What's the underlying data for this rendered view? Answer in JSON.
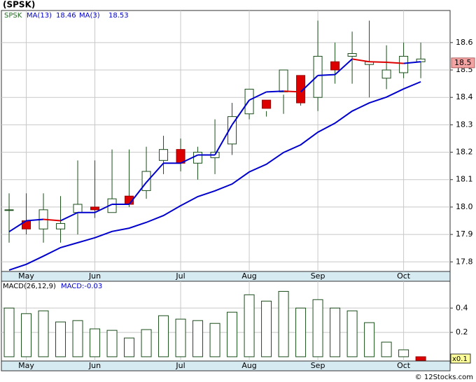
{
  "title": "(SPSK)",
  "footer": "© 12Stocks.com",
  "chart_data": [
    {
      "type": "candlestick",
      "xlim": [
        -0.45,
        25.71
      ],
      "xticks": [
        {
          "value": 1,
          "label": "May"
        },
        {
          "value": 5,
          "label": "Jun"
        },
        {
          "value": 10,
          "label": "Jul"
        },
        {
          "value": 14,
          "label": "Aug"
        },
        {
          "value": 18,
          "label": "Sep"
        },
        {
          "value": 23,
          "label": "Oct"
        }
      ],
      "ylim": [
        17.765,
        18.717
      ],
      "yticks": [
        17.8,
        17.9,
        {
          "value": 18,
          "label": "18.0"
        },
        18.1,
        18.2,
        18.3,
        18.4,
        18.5,
        18.6
      ],
      "grid": true,
      "ohlc": {
        "name": "SPSK",
        "up_color": "#ffffff",
        "down_color": "#dd0000",
        "edge_color": "#1a4d1a",
        "open": [
          17.99,
          17.95,
          17.92,
          17.92,
          17.98,
          18.0,
          17.98,
          18.04,
          18.06,
          18.17,
          18.21,
          18.16,
          18.18,
          18.23,
          18.34,
          18.39,
          18.42,
          18.48,
          18.4,
          18.53,
          18.55,
          18.52,
          18.47,
          18.49,
          18.53
        ],
        "high": [
          18.05,
          18.05,
          18.05,
          18.04,
          18.17,
          18.17,
          18.21,
          18.21,
          18.22,
          18.26,
          18.25,
          18.22,
          18.32,
          18.38,
          18.38,
          18.35,
          18.41,
          18.39,
          18.68,
          18.6,
          18.64,
          18.68,
          18.59,
          18.6,
          18.6
        ],
        "low": [
          17.87,
          17.9,
          17.87,
          17.87,
          17.9,
          17.96,
          17.98,
          18.0,
          18.03,
          18.12,
          18.13,
          18.1,
          18.12,
          18.19,
          18.32,
          18.33,
          18.34,
          18.37,
          18.35,
          18.45,
          18.45,
          18.4,
          18.43,
          18.47,
          18.47
        ],
        "close": [
          17.99,
          17.92,
          17.99,
          17.94,
          18.01,
          17.99,
          18.03,
          18.01,
          18.13,
          18.21,
          18.16,
          18.2,
          18.2,
          18.33,
          18.43,
          18.36,
          18.5,
          18.38,
          18.55,
          18.5,
          18.56,
          18.53,
          18.5,
          18.55,
          18.54
        ]
      },
      "series": [
        {
          "name": "MA(13)",
          "label": "18.46",
          "color": "#0000cc",
          "values": [
            17.77,
            17.791,
            17.821,
            17.852,
            17.87,
            17.888,
            17.911,
            17.923,
            17.944,
            17.969,
            18.005,
            18.038,
            18.059,
            18.084,
            18.128,
            18.156,
            18.199,
            18.227,
            18.273,
            18.306,
            18.35,
            18.38,
            18.401,
            18.431,
            18.457
          ]
        },
        {
          "name": "MA(3)",
          "label": "18.53",
          "color": "#0000cc",
          "down_color": "#dd0000",
          "values": [
            17.91,
            17.95,
            17.955,
            17.95,
            17.98,
            17.98,
            18.01,
            18.01,
            18.09,
            18.16,
            18.16,
            18.19,
            18.19,
            18.3,
            18.39,
            18.42,
            18.423,
            18.42,
            18.48,
            18.483,
            18.54,
            18.53,
            18.528,
            18.524,
            18.53
          ]
        }
      ],
      "price_marker": {
        "value": 18.526,
        "label": "18.5",
        "color": "#f4a3a3"
      }
    },
    {
      "type": "bar",
      "name": "MACD(26,12,9)",
      "label": "MACD:-0.03",
      "xlim": [
        -0.45,
        25.71
      ],
      "xticks": [
        {
          "value": 1,
          "label": "May"
        },
        {
          "value": 5,
          "label": "Jun"
        },
        {
          "value": 10,
          "label": "Jul"
        },
        {
          "value": 14,
          "label": "Aug"
        },
        {
          "value": 18,
          "label": "Sep"
        },
        {
          "value": 23,
          "label": "Oct"
        }
      ],
      "ylim": [
        -0.035,
        0.62
      ],
      "yticks": [
        0.2,
        0.4
      ],
      "grid": true,
      "scale_label": "x0.1",
      "color": "#1a4d1a",
      "down_color": "#dd0000",
      "values": [
        0.4,
        0.354,
        0.377,
        0.286,
        0.297,
        0.229,
        0.217,
        0.154,
        0.223,
        0.337,
        0.309,
        0.297,
        0.274,
        0.366,
        0.509,
        0.457,
        0.537,
        0.4,
        0.469,
        0.4,
        0.377,
        0.28,
        0.12,
        0.057,
        -0.03
      ]
    }
  ]
}
